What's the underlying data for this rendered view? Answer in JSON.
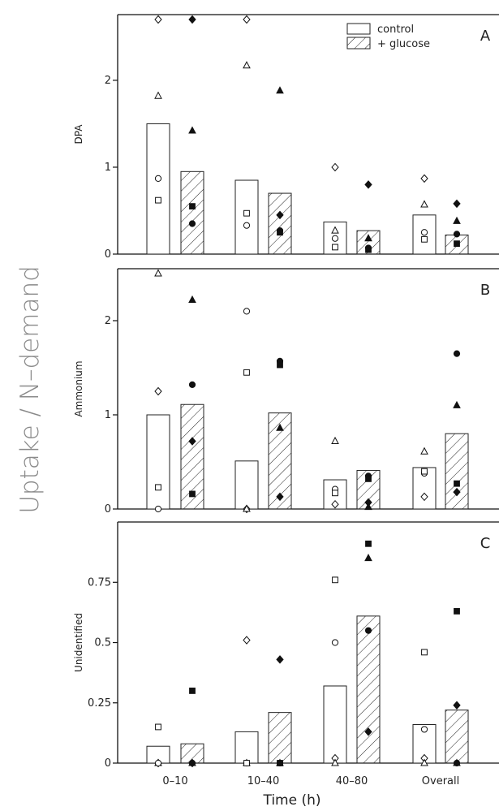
{
  "figure": {
    "overall_ylabel": "Uptake / N–demand",
    "xlabel": "Time (h)",
    "legend": {
      "control": "control",
      "glucose": "+ glucose"
    }
  },
  "chart_data": [
    {
      "type": "bar",
      "panel_letter": "A",
      "ylabel": "DPA",
      "categories": [
        "0–10",
        "10–40",
        "40–80",
        "Overall"
      ],
      "ylim": [
        0,
        2.7
      ],
      "yticks": [
        0,
        1,
        2
      ],
      "ytick_labels": [
        "0",
        "1",
        "2"
      ],
      "series": [
        {
          "name": "control",
          "values": [
            1.5,
            0.85,
            0.37,
            0.45
          ]
        },
        {
          "name": "+ glucose",
          "values": [
            0.95,
            0.7,
            0.27,
            0.22
          ]
        }
      ],
      "points": {
        "control": [
          {
            "diamond": 2.7,
            "triangle": 1.82,
            "circle": 0.87,
            "square": 0.62
          },
          {
            "diamond": 2.7,
            "triangle": 2.17,
            "circle": 0.33,
            "square": 0.47
          },
          {
            "diamond": 1.0,
            "triangle": 0.27,
            "circle": 0.18,
            "square": 0.08
          },
          {
            "diamond": 0.87,
            "triangle": 0.57,
            "circle": 0.25,
            "square": 0.17
          }
        ],
        "glucose": [
          {
            "diamond": 2.7,
            "triangle": 1.42,
            "circle": 0.35,
            "square": 0.55
          },
          {
            "diamond": 0.45,
            "triangle": 1.88,
            "circle": 0.27,
            "square": 0.25
          },
          {
            "diamond": 0.8,
            "triangle": 0.18,
            "circle": 0.07,
            "square": 0.05
          },
          {
            "diamond": 0.58,
            "triangle": 0.38,
            "circle": 0.23,
            "square": 0.12
          }
        ]
      }
    },
    {
      "type": "bar",
      "panel_letter": "B",
      "ylabel": "Ammonium",
      "categories": [
        "0–10",
        "10–40",
        "40–80",
        "Overall"
      ],
      "ylim": [
        0,
        2.5
      ],
      "yticks": [
        0,
        1,
        2
      ],
      "ytick_labels": [
        "0",
        "1",
        "2"
      ],
      "series": [
        {
          "name": "control",
          "values": [
            1.0,
            0.51,
            0.31,
            0.44
          ]
        },
        {
          "name": "+ glucose",
          "values": [
            1.11,
            1.02,
            0.41,
            0.8
          ]
        }
      ],
      "points": {
        "control": [
          {
            "diamond": 1.25,
            "triangle": 2.5,
            "circle": 0.0,
            "square": 0.23
          },
          {
            "diamond": 0.0,
            "triangle": 0.0,
            "circle": 2.1,
            "square": 1.45
          },
          {
            "diamond": 0.05,
            "triangle": 0.72,
            "circle": 0.21,
            "square": 0.17
          },
          {
            "diamond": 0.13,
            "triangle": 0.61,
            "circle": 0.38,
            "square": 0.4
          }
        ],
        "glucose": [
          {
            "diamond": 0.72,
            "triangle": 2.22,
            "circle": 1.32,
            "square": 0.16
          },
          {
            "diamond": 0.13,
            "triangle": 0.86,
            "circle": 1.57,
            "square": 1.53
          },
          {
            "diamond": 0.07,
            "triangle": 0.02,
            "circle": 0.35,
            "square": 0.32
          },
          {
            "diamond": 0.18,
            "triangle": 1.1,
            "circle": 1.65,
            "square": 0.27
          }
        ]
      }
    },
    {
      "type": "bar",
      "panel_letter": "C",
      "ylabel": "Unidentified",
      "categories": [
        "0–10",
        "10–40",
        "40–80",
        "Overall"
      ],
      "ylim": [
        0,
        0.98
      ],
      "yticks": [
        0,
        0.25,
        0.5,
        0.75
      ],
      "ytick_labels": [
        "0",
        "0.25",
        "0.5",
        "0.75"
      ],
      "series": [
        {
          "name": "control",
          "values": [
            0.07,
            0.13,
            0.32,
            0.16
          ]
        },
        {
          "name": "+ glucose",
          "values": [
            0.08,
            0.21,
            0.61,
            0.22
          ]
        }
      ],
      "points": {
        "control": [
          {
            "diamond": 0.0,
            "triangle": 0.0,
            "circle": 0.0,
            "square": 0.15
          },
          {
            "diamond": 0.51,
            "triangle": 0.0,
            "circle": 0.0,
            "square": 0.0
          },
          {
            "diamond": 0.02,
            "triangle": 0.0,
            "circle": 0.5,
            "square": 0.76
          },
          {
            "diamond": 0.02,
            "triangle": 0.0,
            "circle": 0.14,
            "square": 0.46
          }
        ],
        "glucose": [
          {
            "diamond": 0.0,
            "triangle": 0.0,
            "circle": 0.0,
            "square": 0.3
          },
          {
            "diamond": 0.43,
            "triangle": 0.0,
            "circle": 0.0,
            "square": 0.0
          },
          {
            "diamond": 0.13,
            "triangle": 0.85,
            "circle": 0.55,
            "square": 0.91
          },
          {
            "diamond": 0.24,
            "triangle": 0.0,
            "circle": 0.0,
            "square": 0.63
          }
        ]
      }
    }
  ]
}
